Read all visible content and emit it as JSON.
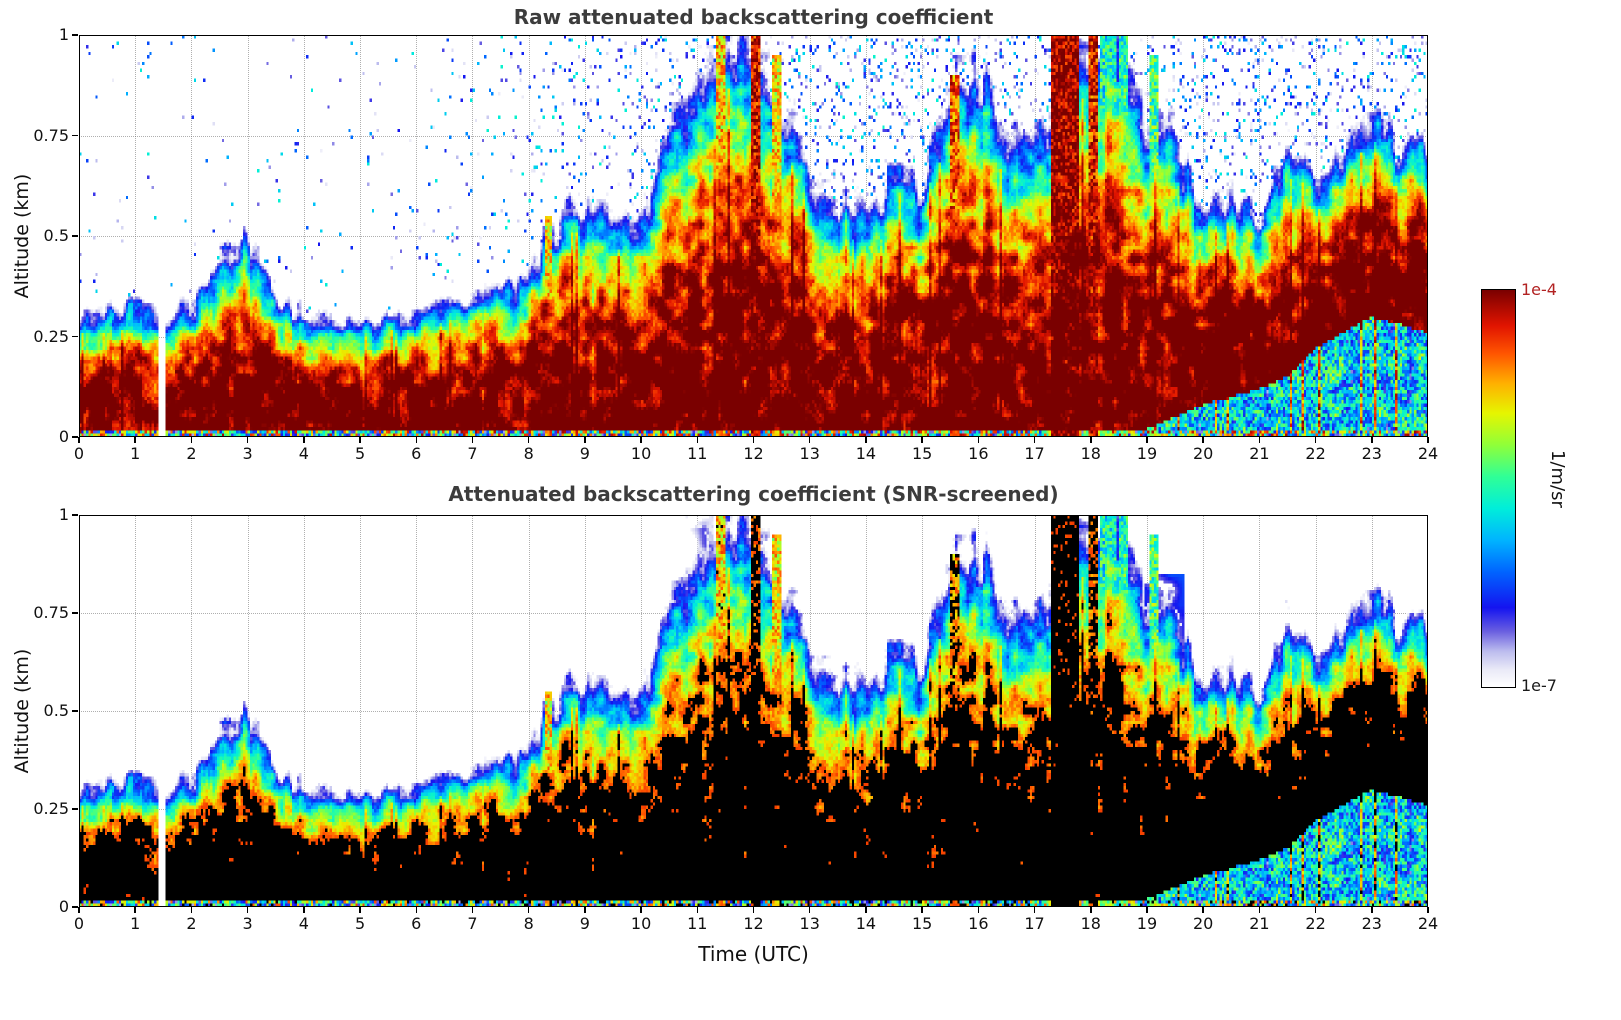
{
  "figure": {
    "panels": [
      {
        "title": "Raw attenuated backscattering coefficient",
        "ylabel": "Altitude (km)",
        "xlabel": ""
      },
      {
        "title": "Attenuated backscattering coefficient (SNR-screened)",
        "ylabel": "Altitude (km)",
        "xlabel": "Time (UTC)"
      }
    ],
    "colorbar": {
      "label": "1/m/sr",
      "max_label": "1e-4",
      "min_label": "1e-7",
      "max_label_color": "#b22222",
      "min_label_color": "#1a1a1a"
    }
  },
  "chart_data": {
    "type": "heatmap",
    "panels": [
      {
        "title": "Raw attenuated backscattering coefficient",
        "screened": false
      },
      {
        "title": "Attenuated backscattering coefficient (SNR-screened)",
        "screened": true
      }
    ],
    "x": {
      "label": "Time (UTC)",
      "min": 0,
      "max": 24,
      "ticks": [
        0,
        1,
        2,
        3,
        4,
        5,
        6,
        7,
        8,
        9,
        10,
        11,
        12,
        13,
        14,
        15,
        16,
        17,
        18,
        19,
        20,
        21,
        22,
        23,
        24
      ]
    },
    "y": {
      "label": "Altitude (km)",
      "min": 0,
      "max": 1,
      "ticks": [
        0,
        0.25,
        0.5,
        0.75,
        1
      ],
      "tick_labels": [
        "0",
        "0.25",
        "0.5",
        "0.75",
        "1"
      ]
    },
    "value": {
      "units": "1/m/sr",
      "scale": "log10",
      "log_min": -7,
      "log_max": -4
    },
    "grid": {
      "x_step_h": 1,
      "y_step_km": 0.25,
      "style": "dotted"
    },
    "colormap_stops": [
      [
        0.0,
        "#ffffff"
      ],
      [
        0.045,
        "#e9e9f7"
      ],
      [
        0.09,
        "#bcbcee"
      ],
      [
        0.14,
        "#6a5fe0"
      ],
      [
        0.2,
        "#1414f0"
      ],
      [
        0.29,
        "#0064ff"
      ],
      [
        0.37,
        "#00b4ff"
      ],
      [
        0.45,
        "#00eeda"
      ],
      [
        0.53,
        "#30ff96"
      ],
      [
        0.61,
        "#90ff38"
      ],
      [
        0.69,
        "#e6f500"
      ],
      [
        0.765,
        "#ffb000"
      ],
      [
        0.84,
        "#ff5500"
      ],
      [
        0.91,
        "#e11400"
      ],
      [
        1.0,
        "#7a0000"
      ]
    ],
    "aerosol_layer_top_km": {
      "t_step_h": 0.5,
      "values": [
        0.3,
        0.33,
        0.36,
        0.3,
        0.34,
        0.46,
        0.52,
        0.36,
        0.3,
        0.29,
        0.3,
        0.3,
        0.31,
        0.34,
        0.36,
        0.38,
        0.42,
        0.55,
        0.62,
        0.56,
        0.56,
        0.75,
        0.88,
        1.0,
        1.0,
        0.9,
        0.66,
        0.6,
        0.56,
        0.66,
        0.62,
        0.9,
        0.95,
        0.72,
        0.76,
        1.0,
        1.0,
        1.0,
        0.82,
        0.76,
        0.56,
        0.66,
        0.56,
        0.76,
        0.62,
        0.72,
        0.8,
        0.76,
        0.7
      ]
    },
    "aerosol_layer_base_km": {
      "t_step_h": 0.5,
      "values": [
        0,
        0,
        0,
        0,
        0,
        0,
        0,
        0,
        0,
        0,
        0,
        0,
        0,
        0,
        0,
        0,
        0,
        0,
        0,
        0,
        0,
        0,
        0,
        0,
        0,
        0,
        0,
        0,
        0,
        0,
        0,
        0,
        0,
        0,
        0,
        0,
        0,
        0,
        0.02,
        0.05,
        0.08,
        0.1,
        0.12,
        0.15,
        0.22,
        0.26,
        0.3,
        0.28,
        0.26
      ]
    },
    "data_gap_utc": [
      1.43,
      1.53
    ],
    "event_columns": [
      {
        "t0": 8.28,
        "t1": 8.4,
        "log10_value": -4.9,
        "z_top_km": 0.55
      },
      {
        "t0": 11.35,
        "t1": 11.52,
        "log10_value": -4.8,
        "z_top_km": 1.0
      },
      {
        "t0": 11.95,
        "t1": 12.12,
        "log10_value": -4.2,
        "z_top_km": 1.0
      },
      {
        "t0": 12.35,
        "t1": 12.5,
        "log10_value": -4.9,
        "z_top_km": 0.95
      },
      {
        "t0": 15.52,
        "t1": 15.66,
        "log10_value": -4.5,
        "z_top_km": 0.9
      },
      {
        "t0": 17.28,
        "t1": 17.8,
        "log10_value": -4.05,
        "z_top_km": 1.0
      },
      {
        "t0": 17.95,
        "t1": 18.12,
        "log10_value": -4.3,
        "z_top_km": 1.0
      },
      {
        "t0": 18.17,
        "t1": 18.45,
        "log10_value": -5.6,
        "z_top_km": 1.0
      },
      {
        "t0": 18.52,
        "t1": 18.68,
        "log10_value": -5.5,
        "z_top_km": 1.0
      },
      {
        "t0": 19.05,
        "t1": 19.22,
        "log10_value": -5.4,
        "z_top_km": 0.95
      }
    ],
    "screened_black_above_log10": -4.4,
    "screened_noise_patches": [
      {
        "t0": 10.8,
        "t1": 11.3,
        "z0": 0.75,
        "z1": 1.0,
        "log10_value": -6.9
      },
      {
        "t0": 16.05,
        "t1": 16.5,
        "z0": 0.5,
        "z1": 0.8,
        "log10_value": -6.85
      },
      {
        "t0": 18.25,
        "t1": 19.65,
        "z0": 0.35,
        "z1": 0.85,
        "log10_value": -6.6
      },
      {
        "t0": 21.7,
        "t1": 23.95,
        "z0": 0.15,
        "z1": 0.62,
        "log10_value": -6.8
      }
    ],
    "raw_speckle": {
      "onset_utc": 5.5,
      "ramp_hours": 7,
      "base_fraction": 0.012,
      "max_fraction": 0.12
    }
  }
}
